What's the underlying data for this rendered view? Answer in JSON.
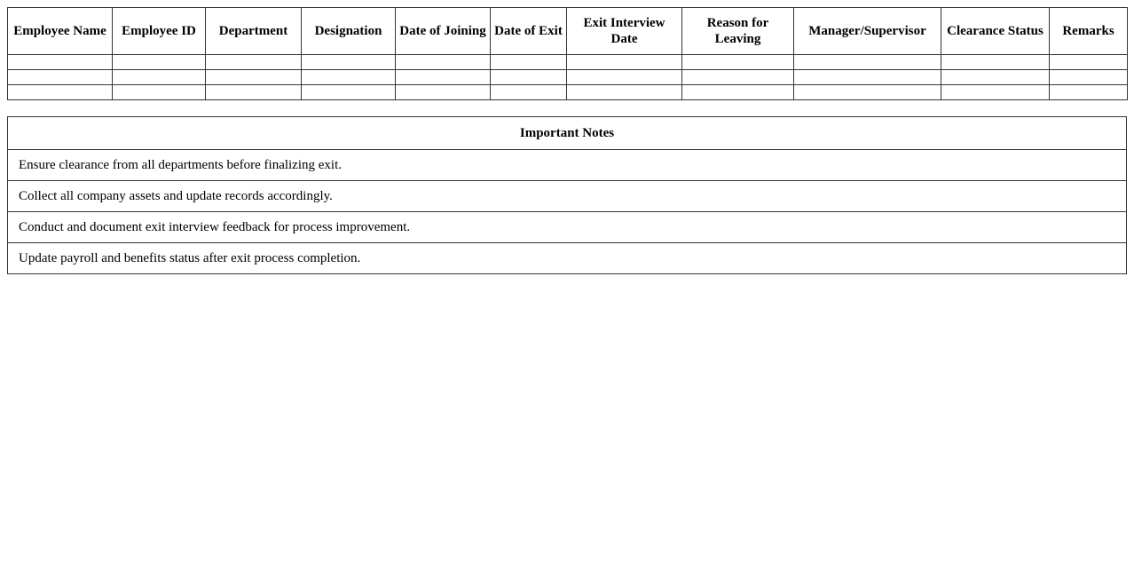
{
  "columns": [
    "Employee Name",
    "Employee ID",
    "Department",
    "Designation",
    "Date of Joining",
    "Date of Exit",
    "Exit Interview Date",
    "Reason for Leaving",
    "Manager/Supervisor",
    "Clearance Status",
    "Remarks"
  ],
  "empty_rows": 3,
  "notes": {
    "title": "Important Notes",
    "items": [
      "Ensure clearance from all departments before finalizing exit.",
      "Collect all company assets and update records accordingly.",
      "Conduct and document exit interview feedback for process improvement.",
      "Update payroll and benefits status after exit process completion."
    ]
  }
}
